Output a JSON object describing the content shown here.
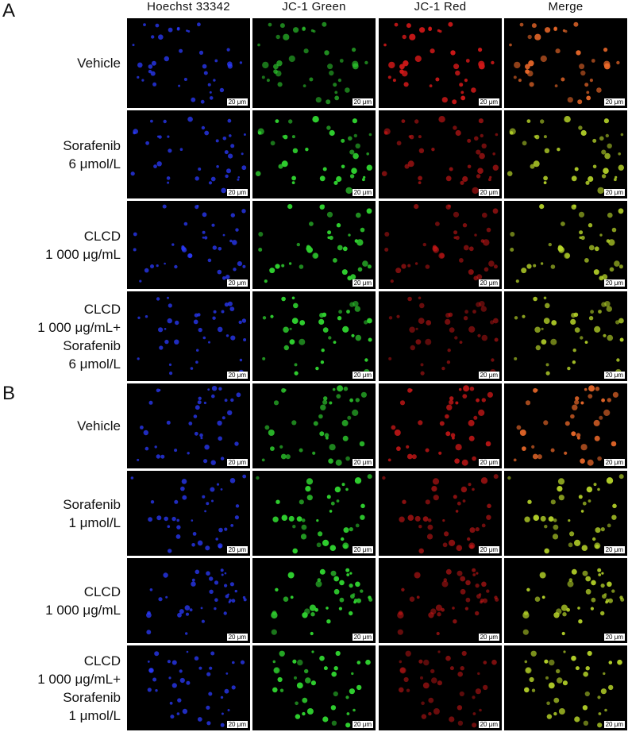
{
  "columns": [
    "Hoechst 33342",
    "JC-1 Green",
    "JC-1 Red",
    "Merge"
  ],
  "scale_bar": "20 μm",
  "panels": [
    {
      "letter": "A",
      "rows": [
        {
          "label": [
            "Vehicle"
          ]
        },
        {
          "label": [
            "Sorafenib",
            "6 μmol/L"
          ]
        },
        {
          "label": [
            "CLCD",
            "1 000 μg/mL"
          ]
        },
        {
          "label": [
            "CLCD",
            "1 000 μg/mL+",
            "Sorafenib",
            "6 μmol/L"
          ]
        }
      ]
    },
    {
      "letter": "B",
      "rows": [
        {
          "label": [
            "Vehicle"
          ]
        },
        {
          "label": [
            "Sorafenib",
            "1 μmol/L"
          ]
        },
        {
          "label": [
            "CLCD",
            "1 000 μg/mL"
          ]
        },
        {
          "label": [
            "CLCD",
            "1 000 μg/mL+",
            "Sorafenib",
            "1 μmol/L"
          ]
        }
      ]
    }
  ],
  "channel_colors": {
    "hoechst": "#2b3bff",
    "green": "#2ecc2e",
    "red": "#d01818",
    "merge_red_dominant": "#ee6a2a",
    "merge_green_dominant": "#b8d62a"
  }
}
